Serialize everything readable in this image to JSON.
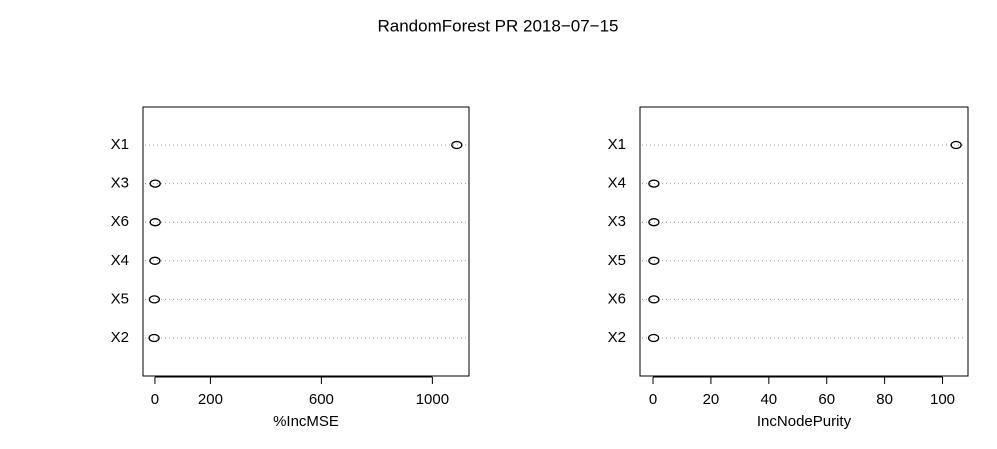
{
  "title": "RandomForest PR 2018−07−15",
  "chart_data": [
    {
      "type": "dot",
      "xlabel": "%IncMSE",
      "categories": [
        "X1",
        "X3",
        "X6",
        "X4",
        "X5",
        "X2"
      ],
      "values": [
        1088,
        1,
        1,
        0,
        -2,
        -3
      ],
      "xlim": [
        -43,
        1132
      ],
      "xticks": [
        0,
        200,
        600,
        1000
      ],
      "grid": true,
      "color": "#000000"
    },
    {
      "type": "dot",
      "xlabel": "IncNodePurity",
      "categories": [
        "X1",
        "X4",
        "X3",
        "X5",
        "X6",
        "X2"
      ],
      "values": [
        104.7,
        0.3,
        0.3,
        0.3,
        0.3,
        0.2
      ],
      "xlim": [
        -4.5,
        108.8
      ],
      "xticks": [
        0,
        20,
        40,
        60,
        80,
        100
      ],
      "grid": true,
      "color": "#000000"
    }
  ]
}
